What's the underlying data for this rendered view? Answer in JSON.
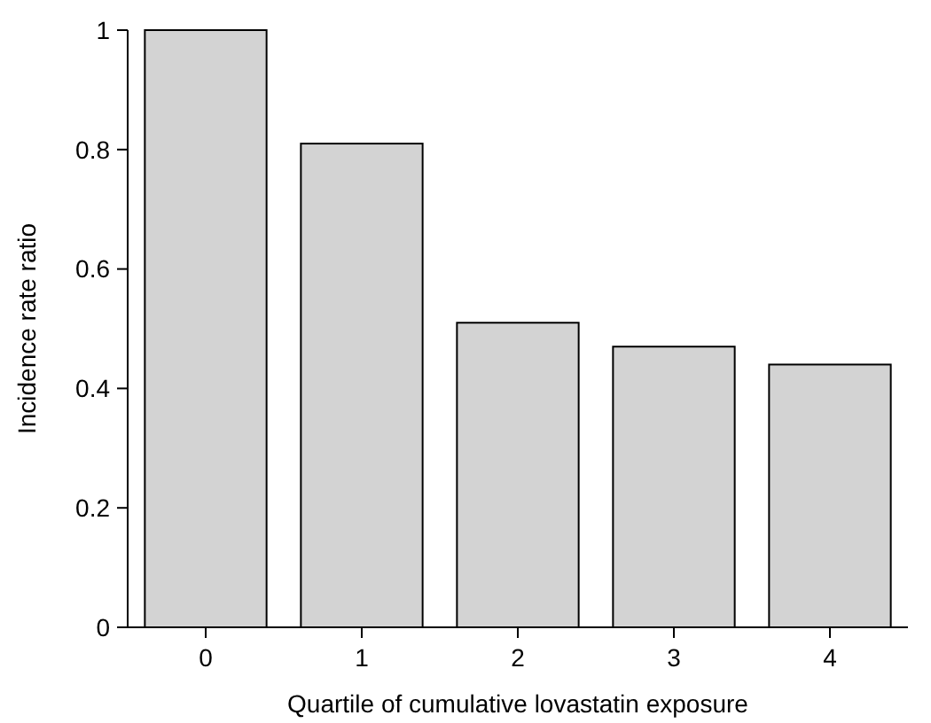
{
  "chart_data": {
    "type": "bar",
    "xlabel": "Quartile of cumulative lovastatin exposure",
    "ylabel": "Incidence rate ratio",
    "categories": [
      "0",
      "1",
      "2",
      "3",
      "4"
    ],
    "values": [
      1,
      0.81,
      0.51,
      0.47,
      0.44
    ],
    "color": "#d3d3d3",
    "ylim": [
      0,
      1
    ],
    "yticks": [
      0,
      0.2,
      0.4,
      0.6,
      0.8,
      1
    ],
    "grid": false
  }
}
